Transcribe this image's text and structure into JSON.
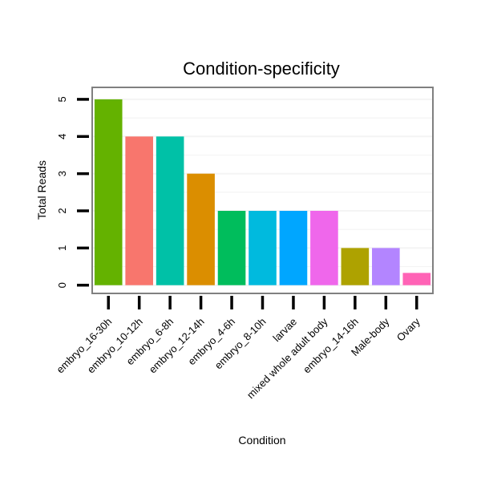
{
  "chart_data": {
    "type": "bar",
    "title": "Condition-specificity",
    "xlabel": "Condition",
    "ylabel": "Total Reads",
    "categories": [
      "embryo_16-30h",
      "embryo_10-12h",
      "embryo_6-8h",
      "embryo_12-14h",
      "embryo_4-6h",
      "embryo_8-10h",
      "larvae",
      "mixed whole adult body",
      "embryo_14-16h",
      "Male-body",
      "Ovary"
    ],
    "values": [
      5,
      4,
      4,
      3,
      2,
      2,
      2,
      2,
      1,
      1,
      0.33
    ],
    "colors": [
      "#64B200",
      "#F8766D",
      "#00C1A7",
      "#DB8E00",
      "#00BD5C",
      "#00BADE",
      "#00A6FF",
      "#EF67EB",
      "#AEA200",
      "#B385FF",
      "#FF63B6"
    ],
    "yticks": [
      0,
      1,
      2,
      3,
      4,
      5
    ],
    "ylim": [
      -0.2,
      5.3
    ],
    "grid": true,
    "legend": "none"
  }
}
